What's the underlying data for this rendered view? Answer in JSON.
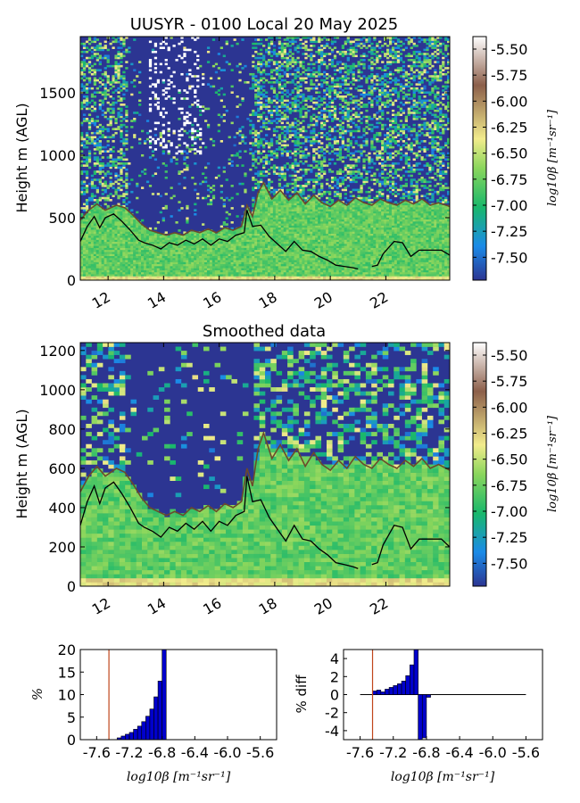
{
  "colors": {
    "background": "#ffffff",
    "frame": "#000000",
    "cbl_line": "#000000",
    "secondary_line": "#6b4a2b",
    "hist_bar": "#0000cc",
    "threshold_line": "#c0461b",
    "colormap_stops": [
      "#2c3592",
      "#1a8be8",
      "#19b86b",
      "#8ad65c",
      "#f2ec8c",
      "#8c5f4a",
      "#ffffff"
    ]
  },
  "chart_data": [
    {
      "type": "heatmap",
      "title": "UUSYR - 0100 Local 20 May 2025",
      "ylabel": "Height m (AGL)",
      "xlabel": "",
      "x_ticks": [
        "12",
        "14",
        "16",
        "18",
        "20",
        "22"
      ],
      "x_tick_values": [
        12,
        14,
        16,
        18,
        20,
        22
      ],
      "y_ticks": [
        "0",
        "500",
        "1000",
        "1500"
      ],
      "y_tick_values": [
        0,
        500,
        1000,
        1500
      ],
      "xlim": [
        11.0,
        24.3
      ],
      "ylim": [
        0,
        1950
      ],
      "colorbar": {
        "label": "log10β [m⁻¹sr⁻¹]",
        "ticks": [
          "-5.50",
          "-5.75",
          "-6.00",
          "-6.25",
          "-6.50",
          "-6.75",
          "-7.00",
          "-7.25",
          "-7.50"
        ],
        "tick_values": [
          -5.5,
          -5.75,
          -6.0,
          -6.25,
          -6.5,
          -6.75,
          -7.0,
          -7.25,
          -7.5
        ],
        "range": [
          -7.72,
          -5.38
        ]
      },
      "series": [
        {
          "x": [
            11.0,
            11.25,
            11.5,
            11.7,
            11.9,
            12.2,
            12.5,
            12.8,
            13.1,
            13.3,
            13.6,
            13.9,
            14.2,
            14.5,
            14.8,
            15.1,
            15.4,
            15.7,
            16.0,
            16.3,
            16.6,
            16.9,
            17.0,
            17.2,
            17.5,
            17.8,
            18.1,
            18.4,
            18.7,
            19.0,
            19.3,
            19.6,
            19.9,
            20.2,
            20.5,
            20.8,
            21.0
          ],
          "y": [
            310,
            430,
            510,
            420,
            500,
            530,
            470,
            400,
            320,
            300,
            280,
            250,
            300,
            280,
            320,
            290,
            330,
            280,
            330,
            310,
            360,
            380,
            560,
            430,
            440,
            350,
            290,
            230,
            310,
            240,
            230,
            190,
            160,
            120,
            110,
            100,
            90
          ]
        },
        {
          "x": [
            21.5,
            21.7,
            21.9,
            22.1,
            22.3,
            22.6,
            22.9,
            23.2,
            23.5,
            23.8,
            24.0,
            24.3
          ],
          "y": [
            110,
            120,
            210,
            260,
            310,
            300,
            190,
            240,
            240,
            240,
            240,
            200
          ]
        },
        {
          "x": [
            11.0,
            11.3,
            11.6,
            11.9,
            12.3,
            12.6,
            12.9,
            13.2,
            13.5,
            13.8,
            14.1,
            14.4,
            14.7,
            15.0,
            15.3,
            15.6,
            15.9,
            16.2,
            16.5,
            16.8,
            17.0,
            17.2,
            17.4,
            17.6,
            17.9,
            18.2,
            18.5,
            18.8,
            19.1,
            19.4,
            19.7,
            20.0,
            20.3,
            20.6,
            20.9,
            21.2,
            21.5,
            21.8,
            22.1,
            22.4,
            22.7,
            23.0,
            23.3,
            23.6,
            23.9,
            24.3
          ],
          "y": [
            480,
            560,
            610,
            560,
            600,
            580,
            520,
            450,
            400,
            380,
            360,
            380,
            360,
            400,
            380,
            410,
            380,
            420,
            400,
            430,
            600,
            510,
            700,
            780,
            650,
            720,
            640,
            700,
            610,
            680,
            620,
            590,
            640,
            600,
            660,
            620,
            600,
            650,
            620,
            600,
            640,
            610,
            650,
            600,
            620,
            590
          ]
        }
      ]
    },
    {
      "type": "heatmap",
      "title": "Smoothed data",
      "ylabel": "Height m (AGL)",
      "xlabel": "",
      "x_ticks": [
        "12",
        "14",
        "16",
        "18",
        "20",
        "22"
      ],
      "x_tick_values": [
        12,
        14,
        16,
        18,
        20,
        22
      ],
      "y_ticks": [
        "0",
        "200",
        "400",
        "600",
        "800",
        "1000",
        "1200"
      ],
      "y_tick_values": [
        0,
        200,
        400,
        600,
        800,
        1000,
        1200
      ],
      "xlim": [
        11.0,
        24.3
      ],
      "ylim": [
        0,
        1240
      ],
      "colorbar": {
        "label": "log10β [m⁻¹sr⁻¹]",
        "ticks": [
          "-5.50",
          "-5.75",
          "-6.00",
          "-6.25",
          "-6.50",
          "-6.75",
          "-7.00",
          "-7.25",
          "-7.50"
        ],
        "tick_values": [
          -5.5,
          -5.75,
          -6.0,
          -6.25,
          -6.5,
          -6.75,
          -7.0,
          -7.25,
          -7.5
        ],
        "range": [
          -7.72,
          -5.38
        ]
      },
      "series": [
        {
          "x": [
            11.0,
            11.25,
            11.5,
            11.7,
            11.9,
            12.2,
            12.5,
            12.8,
            13.1,
            13.3,
            13.6,
            13.9,
            14.2,
            14.5,
            14.8,
            15.1,
            15.4,
            15.7,
            16.0,
            16.3,
            16.6,
            16.9,
            17.0,
            17.2,
            17.5,
            17.8,
            18.1,
            18.4,
            18.7,
            19.0,
            19.3,
            19.6,
            19.9,
            20.2,
            20.5,
            20.8,
            21.0
          ],
          "y": [
            310,
            430,
            510,
            420,
            500,
            530,
            470,
            400,
            320,
            300,
            280,
            250,
            300,
            280,
            320,
            290,
            330,
            280,
            330,
            310,
            360,
            380,
            560,
            430,
            440,
            350,
            290,
            230,
            310,
            240,
            230,
            190,
            160,
            120,
            110,
            100,
            90
          ]
        },
        {
          "x": [
            21.5,
            21.7,
            21.9,
            22.1,
            22.3,
            22.6,
            22.9,
            23.2,
            23.5,
            23.8,
            24.0,
            24.3
          ],
          "y": [
            110,
            120,
            210,
            260,
            310,
            300,
            190,
            240,
            240,
            240,
            240,
            200
          ]
        },
        {
          "x": [
            11.0,
            11.3,
            11.6,
            11.9,
            12.3,
            12.6,
            12.9,
            13.2,
            13.5,
            13.8,
            14.1,
            14.4,
            14.7,
            15.0,
            15.3,
            15.6,
            15.9,
            16.2,
            16.5,
            16.8,
            17.0,
            17.2,
            17.4,
            17.6,
            17.9,
            18.2,
            18.5,
            18.8,
            19.1,
            19.4,
            19.7,
            20.0,
            20.3,
            20.6,
            20.9,
            21.2,
            21.5,
            21.8,
            22.1,
            22.4,
            22.7,
            23.0,
            23.3,
            23.6,
            23.9,
            24.3
          ],
          "y": [
            480,
            560,
            610,
            560,
            600,
            580,
            520,
            450,
            400,
            380,
            360,
            380,
            360,
            400,
            380,
            410,
            380,
            420,
            400,
            430,
            600,
            510,
            700,
            780,
            650,
            720,
            640,
            700,
            610,
            680,
            620,
            590,
            640,
            600,
            660,
            620,
            600,
            650,
            620,
            600,
            640,
            610,
            650,
            600,
            620,
            590
          ]
        }
      ]
    },
    {
      "type": "bar",
      "title": "",
      "xlabel": "log10β [m⁻¹sr⁻¹]",
      "ylabel": "%",
      "x_ticks": [
        "-7.6",
        "-7.2",
        "-6.8",
        "-6.4",
        "-6.0",
        "-5.6"
      ],
      "x_tick_values": [
        -7.6,
        -7.2,
        -6.8,
        -6.4,
        -6.0,
        -5.6
      ],
      "y_ticks": [
        "0",
        "5",
        "10",
        "15",
        "20"
      ],
      "y_tick_values": [
        0,
        5,
        10,
        15,
        20
      ],
      "xlim": [
        -7.8,
        -5.4
      ],
      "ylim": [
        0,
        20
      ],
      "bin_width": 0.05,
      "x": [
        -7.35,
        -7.3,
        -7.25,
        -7.2,
        -7.15,
        -7.1,
        -7.05,
        -7.0,
        -6.95,
        -6.9,
        -6.85,
        -6.8
      ],
      "values": [
        0.4,
        0.8,
        1.2,
        1.6,
        2.3,
        3.0,
        4.0,
        5.2,
        6.8,
        9.5,
        13.0,
        20.0
      ],
      "threshold_x": -7.45
    },
    {
      "type": "bar",
      "title": "",
      "xlabel": "log10β [m⁻¹sr⁻¹]",
      "ylabel": "% diff",
      "x_ticks": [
        "-7.6",
        "-7.2",
        "-6.8",
        "-6.4",
        "-6.0",
        "-5.6"
      ],
      "x_tick_values": [
        -7.6,
        -7.2,
        -6.8,
        -6.4,
        -6.0,
        -5.6
      ],
      "y_ticks": [
        "4",
        "2",
        "0",
        "-2",
        "-4"
      ],
      "y_tick_values": [
        4,
        2,
        0,
        -2,
        -4
      ],
      "xlim": [
        -7.8,
        -5.4
      ],
      "ylim": [
        -5,
        5
      ],
      "bin_width": 0.05,
      "x": [
        -7.45,
        -7.4,
        -7.35,
        -7.3,
        -7.25,
        -7.2,
        -7.15,
        -7.1,
        -7.05,
        -7.0,
        -6.95,
        -6.9,
        -6.85,
        -6.8
      ],
      "values": [
        0.4,
        0.5,
        0.3,
        0.6,
        0.8,
        1.0,
        1.2,
        1.5,
        2.1,
        3.3,
        5.0,
        -5.0,
        -4.8,
        -0.3
      ],
      "threshold_x": -7.45,
      "baseline_range": [
        -7.6,
        -5.6
      ]
    }
  ]
}
